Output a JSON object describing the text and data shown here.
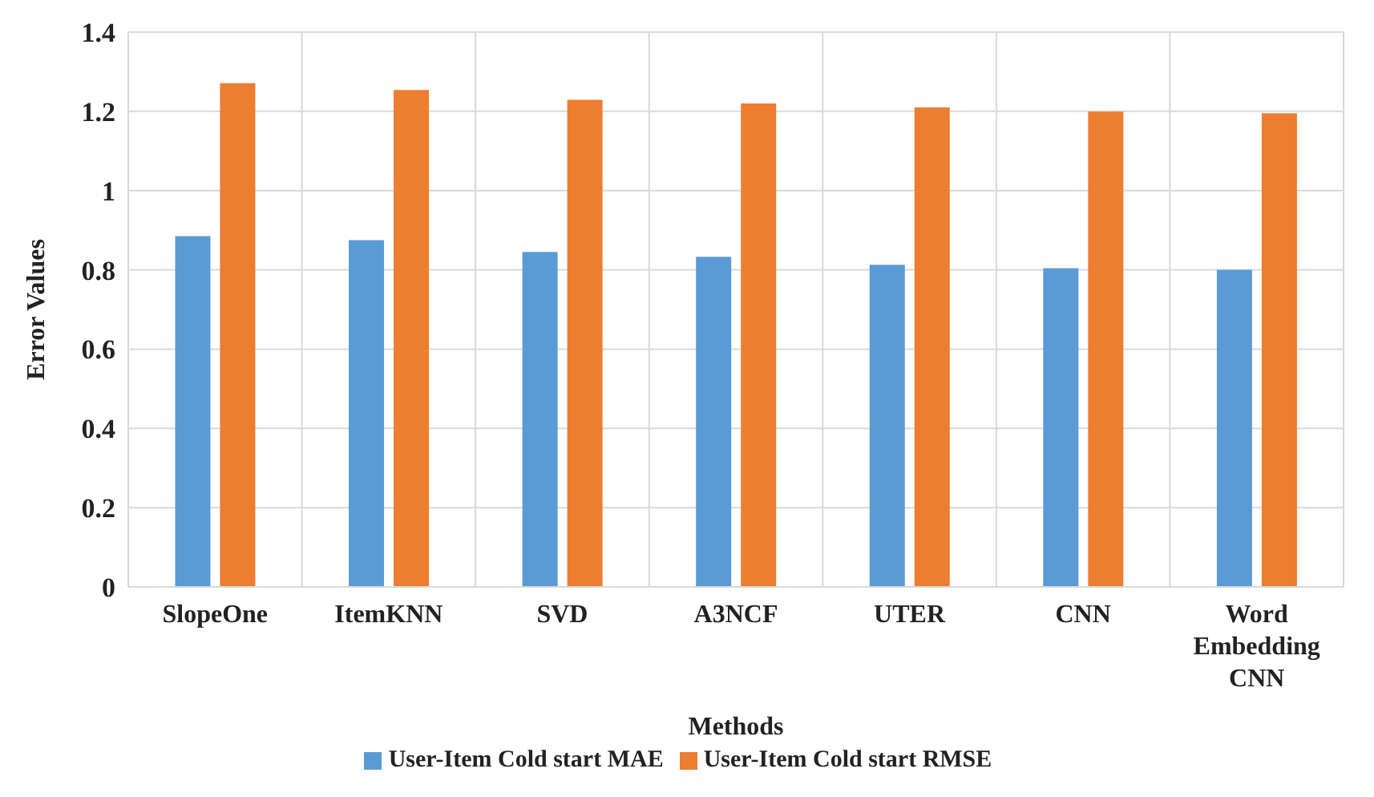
{
  "chart_data": {
    "type": "bar",
    "xlabel": "Methods",
    "ylabel": "Error Values",
    "categories": [
      "SlopeOne",
      "ItemKNN",
      "SVD",
      "A3NCF",
      "UTER",
      "CNN",
      "Word Embedding CNN"
    ],
    "series": [
      {
        "name": "User-Item Cold start MAE",
        "color": "#5b9bd5",
        "values": [
          0.885,
          0.875,
          0.845,
          0.833,
          0.813,
          0.804,
          0.8
        ]
      },
      {
        "name": "User-Item Cold start RMSE",
        "color": "#ed7d31",
        "values": [
          1.271,
          1.254,
          1.229,
          1.22,
          1.21,
          1.199,
          1.195
        ]
      }
    ],
    "ylim": [
      0,
      1.4
    ],
    "yticks": [
      0,
      0.2,
      0.4,
      0.6,
      0.8,
      1,
      1.2,
      1.4
    ],
    "grid": true,
    "legend": "bottom"
  }
}
